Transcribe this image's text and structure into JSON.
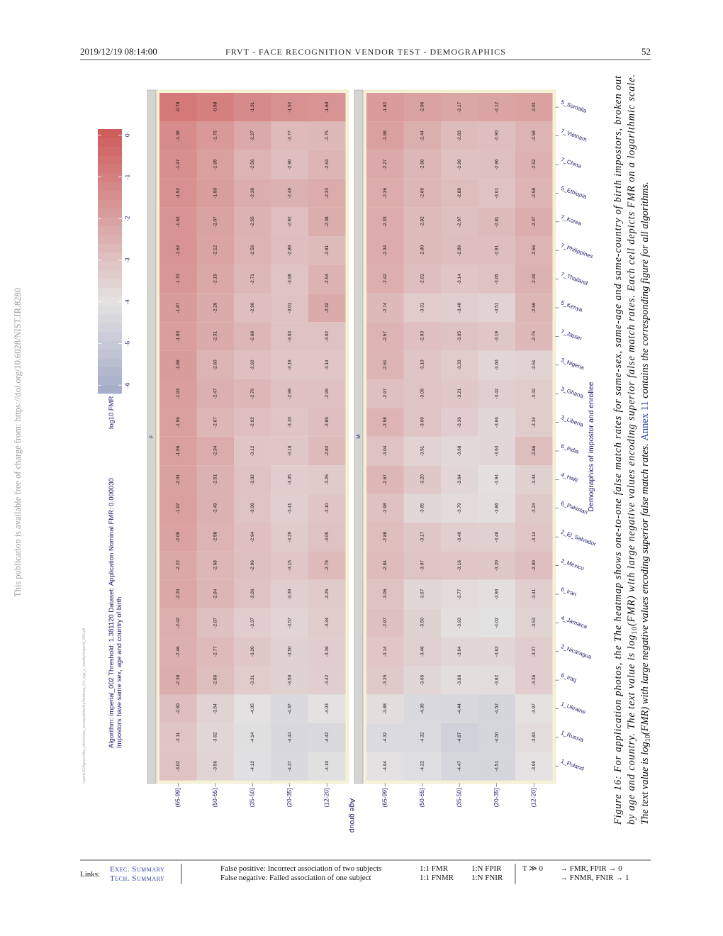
{
  "header": {
    "date": "2019/12/19  08:14:00",
    "title": "FRVT - FACE RECOGNITION VENDOR TEST - DEMOGRAPHICS",
    "page": "52"
  },
  "sidebar": "This publication is available free of charge from: https://doi.org/10.6028/NIST.IR.8280",
  "file_path": "reports/11/figures/dhs_obim/cross_country/plots/fmr/heatmap_fmr_age_x_country/imperial_002.pdf",
  "chart_data": {
    "type": "heatmap",
    "title": "Algorithm: imperial_002   Threshold: 1.381120   Dataset: Application   Nominal FMR: 0.000030",
    "subtitle": "Impostors have same sex, age and country of birth",
    "colorbar_label": "log10 FMR",
    "x_label": "Demographics of impostor and enrollee",
    "y_label": "Age group",
    "categories": [
      "5_Somalia",
      "7_Vietnam",
      "7_China",
      "5_Ethiopia",
      "7_Korea",
      "7_Philippines",
      "7_Thailand",
      "5_Kenya",
      "7_Japan",
      "3_Nigeria",
      "3_Ghana",
      "3_Liberia",
      "6_India",
      "4_Haiti",
      "6_Pakistan",
      "2_El_Salvador",
      "2_Mexico",
      "6_Iran",
      "4_Jamaica",
      "2_Nicaragua",
      "6_Iraq",
      "1_Ukraine",
      "1_Russia",
      "1_Poland"
    ],
    "age_groups": [
      "(65-99]",
      "(50-65]",
      "(35-50]",
      "(20-35]",
      "(12-20]"
    ],
    "zlim": [
      -6.2,
      0.15
    ],
    "zticks": [
      0,
      -1,
      -2,
      -3,
      -4,
      -5,
      -6
    ],
    "colors": [
      "#a3abc9",
      "#e4e2e2",
      "#cf5a5a"
    ],
    "color_mid": -4,
    "series": [
      {
        "name": "F",
        "values": [
          [
            -0.78,
            -0.98,
            -1.31,
            -1.52,
            -1.6
          ],
          [
            -1.38,
            -1.76,
            -2.27,
            -2.77,
            -2.75
          ],
          [
            -1.47,
            -1.95,
            -2.56,
            -2.9,
            -2.63
          ],
          [
            -1.52,
            -1.9,
            -2.38,
            -2.49,
            -2.33
          ],
          [
            -1.63,
            -2.07,
            -2.55,
            -2.92,
            -2.38
          ],
          [
            -1.62,
            -2.12,
            -2.56,
            -2.89,
            -2.81
          ],
          [
            -1.7,
            -2.19,
            -2.71,
            -3.08,
            -2.54
          ],
          [
            -1.87,
            -2.29,
            -2.9,
            -3.01,
            -2.32
          ],
          [
            -1.93,
            -2.31,
            -2.68,
            -3.03,
            -3.02
          ],
          [
            -1.86,
            -2.6,
            -2.92,
            -3.19,
            -3.14
          ],
          [
            -1.93,
            -2.47,
            -2.7,
            -2.99,
            -2.99
          ],
          [
            -1.96,
            -2.67,
            -2.92,
            -3.1,
            -2.89
          ],
          [
            -1.96,
            -2.34,
            -3.12,
            -3.18,
            -2.82
          ],
          [
            -2.01,
            -2.51,
            -3.02,
            -3.35,
            -3.26
          ],
          [
            -1.97,
            -2.49,
            -3.08,
            -3.41,
            -3.1
          ],
          [
            -2.05,
            -2.58,
            -2.94,
            -3.29,
            -3.05
          ],
          [
            -2.22,
            -2.68,
            -2.96,
            -3.15,
            -2.79
          ],
          [
            -2.2,
            -2.64,
            -3.06,
            -3.39,
            -3.26
          ],
          [
            -2.42,
            -2.97,
            -3.37,
            -3.57,
            -3.34
          ],
          [
            -2.46,
            -2.77,
            -3.2,
            -3.5,
            -3.36
          ],
          [
            -2.38,
            -2.86,
            -3.31,
            -3.5,
            -3.42
          ],
          [
            -2.9,
            -3.54,
            -4.05,
            -4.37,
            -4.03
          ],
          [
            -3.11,
            -3.62,
            -4.14,
            -4.44,
            -4.42
          ],
          [
            -3.02,
            -3.56,
            -4.12,
            -4.37,
            -4.1
          ]
        ],
        "value_labels": [
          [
            "-0.78",
            "-0.98",
            "-1.31",
            "-1.52",
            "-1.60"
          ],
          [
            "-1.38",
            "-1.76",
            "-2.27",
            "-2.77",
            "-2.75"
          ],
          [
            "-1.47",
            "-1.95",
            "-2.56",
            "-2.90",
            "-2.63"
          ],
          [
            "-1.52",
            "-1.90",
            "-2.38",
            "-2.49",
            "-2.33"
          ],
          [
            "-1.63",
            "-2.07",
            "-2.55",
            "-2.92",
            "-2.38"
          ],
          [
            "-1.62",
            "-2.12",
            "-2.56",
            "-2.89",
            "-2.81"
          ],
          [
            "-1.70",
            "-2.19",
            "-2.71",
            "-3.08",
            "-2.54"
          ],
          [
            "-1.87",
            "-2.29",
            "-2.90",
            "-3.01",
            "-2.32"
          ],
          [
            "-1.93",
            "-2.31",
            "-2.68",
            "-3.03",
            "-3.02"
          ],
          [
            "-1.86",
            "-2.60",
            "-2.92",
            "-3.19",
            "-3.14"
          ],
          [
            "-1.93",
            "-2.47",
            "-2.70",
            "-2.99",
            "-2.99"
          ],
          [
            "-1.96",
            "-2.67",
            "-2.92",
            "-3.10",
            "-2.89"
          ],
          [
            "-1.96",
            "-2.34",
            "-3.12",
            "-3.18",
            "-2.82"
          ],
          [
            "-2.01",
            "-2.51",
            "-3.02",
            "-3.35",
            "-3.26"
          ],
          [
            "-1.97",
            "-2.49",
            "-3.08",
            "-3.41",
            "-3.10"
          ],
          [
            "-2.05",
            "-2.58",
            "-2.94",
            "-3.29",
            "-3.05"
          ],
          [
            "-2.22",
            "-2.68",
            "-2.96",
            "-3.15",
            "-2.79"
          ],
          [
            "-2.20",
            "-2.64",
            "-3.06",
            "-3.39",
            "-3.26"
          ],
          [
            "-2.42",
            "-2.97",
            "-3.37",
            "-3.57",
            "-3.34"
          ],
          [
            "-2.46",
            "-2.77",
            "-3.20",
            "-3.50",
            "-3.36"
          ],
          [
            "-2.38",
            "-2.86",
            "-3.31",
            "-3.50",
            "-3.42"
          ],
          [
            "-2.90",
            "-3.54",
            "-4.05",
            "-4.37",
            "-4.03"
          ],
          [
            "-3.11",
            "-3.62",
            "-4.14",
            "-4.44",
            "-4.42"
          ],
          [
            "-3.02",
            "-3.56",
            "-4.12",
            "-4.37",
            "-4.10"
          ]
        ]
      },
      {
        "name": "M",
        "values": [
          [
            -1.82,
            -2.06,
            -2.17,
            -2.12,
            -2.01
          ],
          [
            -1.98,
            -2.44,
            -2.83,
            -2.9,
            -2.58
          ],
          [
            -2.27,
            -2.68,
            -2.99,
            -2.96,
            -2.52
          ],
          [
            -2.36,
            -2.69,
            -2.88,
            -3.01,
            -2.58
          ],
          [
            -2.33,
            -2.82,
            -2.97,
            -2.81,
            -2.37
          ],
          [
            -2.34,
            -2.8,
            -2.89,
            -2.91,
            -2.56
          ],
          [
            -2.42,
            -2.91,
            -3.14,
            -3.05,
            -2.49
          ],
          [
            -2.74,
            -3.31,
            -3.4,
            -3.51,
            -2.66
          ],
          [
            -2.57,
            -2.93,
            -3.05,
            -3.19,
            -2.75
          ],
          [
            -2.61,
            -3.1,
            -3.33,
            -3.6,
            -3.51
          ],
          [
            -2.97,
            -3.09,
            -3.21,
            -3.42,
            -3.32
          ],
          [
            -2.58,
            -3.09,
            -3.36,
            -3.66,
            -3.34
          ],
          [
            -3.04,
            -3.51,
            -3.68,
            -3.63,
            -2.86
          ],
          [
            -2.67,
            -3.2,
            -3.64,
            -3.94,
            -3.44
          ],
          [
            -2.98,
            -3.65,
            -3.79,
            -3.86,
            -3.24
          ],
          [
            -2.88,
            -3.17,
            -3.4,
            -3.46,
            -3.14
          ],
          [
            -2.84,
            -3.07,
            -3.16,
            -3.2,
            -2.9
          ],
          [
            -3.06,
            -3.67,
            -3.77,
            -3.9,
            -3.41
          ],
          [
            -2.97,
            -3.5,
            -3.93,
            -4.02,
            -3.53
          ],
          [
            -3.14,
            -3.46,
            -3.64,
            -3.63,
            -3.37
          ],
          [
            -3.25,
            -3.65,
            -3.86,
            -3.82,
            -3.36
          ],
          [
            -3.88,
            -4.36,
            -4.44,
            -4.52,
            -3.97
          ],
          [
            -4.32,
            -4.32,
            -4.67,
            -4.5,
            -3.83
          ],
          [
            -4.04,
            -4.22,
            -4.47,
            -4.51,
            -3.99
          ]
        ],
        "value_labels": [
          [
            "-1.82",
            "-2.06",
            "-2.17",
            "-2.12",
            "-2.01"
          ],
          [
            "-1.98",
            "-2.44",
            "-2.83",
            "-2.90",
            "-2.58"
          ],
          [
            "-2.27",
            "-2.68",
            "-2.99",
            "-2.96",
            "-2.52"
          ],
          [
            "-2.36",
            "-2.69",
            "-2.88",
            "-3.01",
            "-2.58"
          ],
          [
            "-2.33",
            "-2.82",
            "-2.97",
            "-2.81",
            "-2.37"
          ],
          [
            "-2.34",
            "-2.80",
            "-2.89",
            "-2.91",
            "-2.56"
          ],
          [
            "-2.42",
            "-2.91",
            "-3.14",
            "-3.05",
            "-2.49"
          ],
          [
            "-2.74",
            "-3.31",
            "-3.40",
            "-3.51",
            "-2.66"
          ],
          [
            "-2.57",
            "-2.93",
            "-3.05",
            "-3.19",
            "-2.75"
          ],
          [
            "-2.61",
            "-3.10",
            "-3.33",
            "-3.60",
            "-3.51"
          ],
          [
            "-2.97",
            "-3.09",
            "-3.21",
            "-3.42",
            "-3.32"
          ],
          [
            "-2.58",
            "-3.09",
            "-3.36",
            "-3.66",
            "-3.34"
          ],
          [
            "-3.04",
            "-3.51",
            "-3.68",
            "-3.63",
            "-2.86"
          ],
          [
            "-2.67",
            "-3.20",
            "-3.64",
            "-3.94",
            "-3.44"
          ],
          [
            "-2.98",
            "-3.65",
            "-3.79",
            "-3.86",
            "-3.24"
          ],
          [
            "-2.88",
            "-3.17",
            "-3.40",
            "-3.46",
            "-3.14"
          ],
          [
            "-2.84",
            "-3.07",
            "-3.16",
            "-3.20",
            "-2.90"
          ],
          [
            "-3.06",
            "-3.67",
            "-3.77",
            "-3.90",
            "-3.41"
          ],
          [
            "-2.97",
            "-3.50",
            "-3.93",
            "-4.02",
            "-3.53"
          ],
          [
            "-3.14",
            "-3.46",
            "-3.64",
            "-3.63",
            "-3.37"
          ],
          [
            "-3.25",
            "-3.65",
            "-3.86",
            "-3.82",
            "-3.36"
          ],
          [
            "-3.88",
            "-4.36",
            "-4.44",
            "-4.52",
            "-3.97"
          ],
          [
            "-4.32",
            "-4.32",
            "-4.67",
            "-4.50",
            "-3.83"
          ],
          [
            "-4.04",
            "-4.22",
            "-4.47",
            "-4.51",
            "-3.99"
          ]
        ]
      }
    ]
  },
  "caption": {
    "line1": "Figure 16: For application photos, the The heatmap shows one-to-one false match rates for same-sex, same-age and same-country of birth impostors, broken out",
    "line2": [
      "by age and country.  The text value is log",
      "10",
      "(FMR) with large negative values encoding superior false match rates.  Each cell depicts FMR on a logarithmic scale."
    ],
    "line3": [
      "The text value is log",
      "10",
      "(FMR) with large negative values encoding superior false match rates.",
      "Annex 11",
      "contains the corresponding figure for all algorithms."
    ]
  },
  "footer": {
    "links_label": "Links:",
    "links": [
      "Exec. Summary",
      "Tech. Summary"
    ],
    "definitions": [
      "False positive: Incorrect association of two subjects",
      "False negative: Failed association of one subject"
    ],
    "metrics": [
      "1:1 FMR",
      "1:1 FNMR",
      "1:N FPIR",
      "1:N FNIR"
    ],
    "threshold": "T ≫ 0",
    "effects": [
      "→ FMR, FPIR → 0",
      "→ FNMR, FNIR → 1"
    ]
  }
}
